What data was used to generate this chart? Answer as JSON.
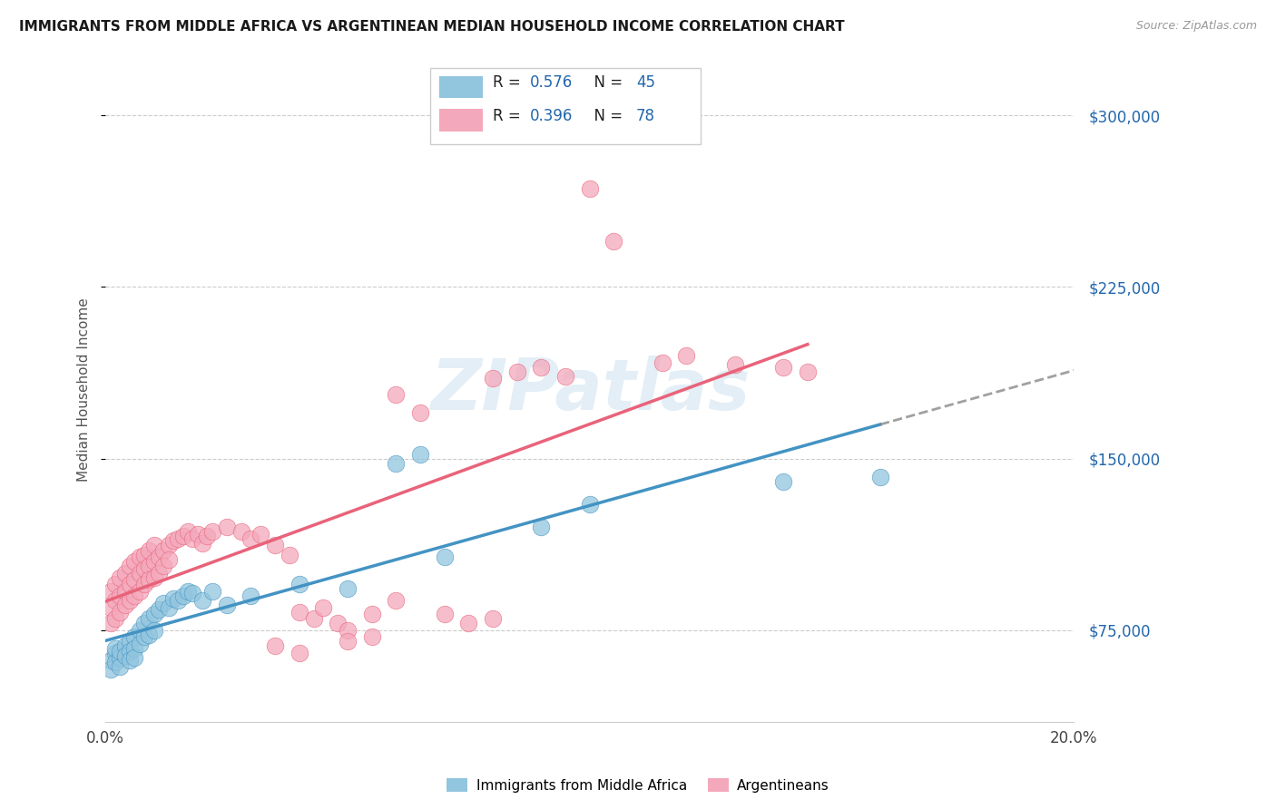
{
  "title": "IMMIGRANTS FROM MIDDLE AFRICA VS ARGENTINEAN MEDIAN HOUSEHOLD INCOME CORRELATION CHART",
  "source": "Source: ZipAtlas.com",
  "ylabel": "Median Household Income",
  "x_min": 0.0,
  "x_max": 0.2,
  "y_min": 35000,
  "y_max": 325000,
  "yticks": [
    75000,
    150000,
    225000,
    300000
  ],
  "xticks": [
    0.0,
    0.05,
    0.1,
    0.15,
    0.2
  ],
  "xtick_labels": [
    "0.0%",
    "",
    "",
    "",
    "20.0%"
  ],
  "watermark": "ZIPatlas",
  "color_blue": "#92c5de",
  "color_pink": "#f4a8bb",
  "color_blue_line": "#4393c3",
  "color_pink_line": "#e8637a",
  "color_text_blue": "#2166ac",
  "legend_r1": "R = 0.576",
  "legend_n1": "N = 45",
  "legend_r2": "R = 0.396",
  "legend_n2": "N = 78",
  "blue_x": [
    0.001,
    0.001,
    0.002,
    0.002,
    0.002,
    0.003,
    0.003,
    0.003,
    0.004,
    0.004,
    0.005,
    0.005,
    0.005,
    0.006,
    0.006,
    0.006,
    0.007,
    0.007,
    0.008,
    0.008,
    0.009,
    0.009,
    0.01,
    0.01,
    0.011,
    0.012,
    0.013,
    0.014,
    0.015,
    0.016,
    0.017,
    0.018,
    0.02,
    0.022,
    0.025,
    0.03,
    0.04,
    0.05,
    0.06,
    0.065,
    0.07,
    0.09,
    0.1,
    0.14,
    0.16
  ],
  "blue_y": [
    62000,
    58000,
    65000,
    61000,
    67000,
    63000,
    59000,
    66000,
    68000,
    64000,
    70000,
    66000,
    62000,
    72000,
    67000,
    63000,
    75000,
    69000,
    78000,
    72000,
    80000,
    73000,
    82000,
    75000,
    84000,
    87000,
    85000,
    89000,
    88000,
    90000,
    92000,
    91000,
    88000,
    92000,
    86000,
    90000,
    95000,
    93000,
    148000,
    152000,
    107000,
    120000,
    130000,
    140000,
    142000
  ],
  "pink_x": [
    0.001,
    0.001,
    0.001,
    0.002,
    0.002,
    0.002,
    0.003,
    0.003,
    0.003,
    0.004,
    0.004,
    0.004,
    0.005,
    0.005,
    0.005,
    0.006,
    0.006,
    0.006,
    0.007,
    0.007,
    0.007,
    0.008,
    0.008,
    0.008,
    0.009,
    0.009,
    0.009,
    0.01,
    0.01,
    0.01,
    0.011,
    0.011,
    0.012,
    0.012,
    0.013,
    0.013,
    0.014,
    0.015,
    0.016,
    0.017,
    0.018,
    0.019,
    0.02,
    0.021,
    0.022,
    0.025,
    0.028,
    0.03,
    0.032,
    0.035,
    0.038,
    0.04,
    0.043,
    0.045,
    0.048,
    0.05,
    0.055,
    0.06,
    0.065,
    0.08,
    0.085,
    0.09,
    0.095,
    0.1,
    0.105,
    0.115,
    0.12,
    0.13,
    0.14,
    0.145,
    0.06,
    0.07,
    0.075,
    0.08,
    0.035,
    0.04,
    0.05,
    0.055
  ],
  "pink_y": [
    85000,
    78000,
    92000,
    88000,
    80000,
    95000,
    90000,
    83000,
    98000,
    92000,
    86000,
    100000,
    95000,
    88000,
    103000,
    97000,
    90000,
    105000,
    100000,
    92000,
    107000,
    102000,
    95000,
    108000,
    103000,
    97000,
    110000,
    105000,
    98000,
    112000,
    107000,
    100000,
    110000,
    103000,
    112000,
    106000,
    114000,
    115000,
    116000,
    118000,
    115000,
    117000,
    113000,
    116000,
    118000,
    120000,
    118000,
    115000,
    117000,
    112000,
    108000,
    83000,
    80000,
    85000,
    78000,
    75000,
    82000,
    178000,
    170000,
    185000,
    188000,
    190000,
    186000,
    268000,
    245000,
    192000,
    195000,
    191000,
    190000,
    188000,
    88000,
    82000,
    78000,
    80000,
    68000,
    65000,
    70000,
    72000
  ]
}
